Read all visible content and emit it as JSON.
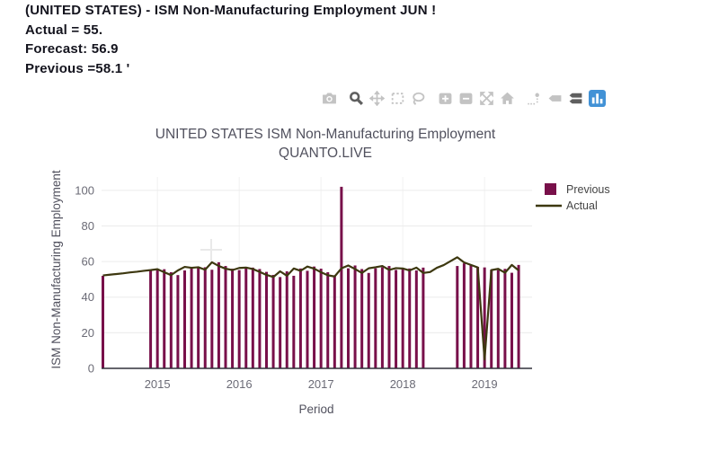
{
  "header": {
    "line1": "(UNITED STATES) - ISM Non-Manufacturing Employment JUN !",
    "line2": "Actual = 55.",
    "line3": "Forecast: 56.9",
    "line4": "Previous =58.1 '"
  },
  "modebar": {
    "icons": [
      "camera-icon",
      "zoom-icon",
      "pan-icon",
      "box-select-icon",
      "lasso-select-icon",
      "zoom-in-icon",
      "zoom-out-icon",
      "autoscale-icon",
      "reset-axes-home-icon",
      "toggle-spikelines-icon",
      "hover-closest-icon",
      "hover-compare-icon",
      "plotly-logo"
    ],
    "icon_color": "#c3c3c3",
    "active_icon_color": "#5f5f5f",
    "logo_color": "#4292d6"
  },
  "chart_data": {
    "type": "bar",
    "title": "UNITED STATES ISM Non-Manufacturing Employment",
    "subtitle": "QUANTO.LIVE",
    "xlabel": "Period",
    "ylabel": "ISM Non-Manufacturing Employment",
    "legend_position": "top-right",
    "grid": true,
    "ylim": [
      0,
      107.5
    ],
    "yticks": [
      0,
      20,
      40,
      60,
      80,
      100
    ],
    "xticks": {
      "labels": [
        "2015",
        "2016",
        "2017",
        "2018",
        "2019"
      ],
      "month_index": [
        8,
        20,
        32,
        44,
        56
      ]
    },
    "x": [
      "2014-05",
      "2014-06",
      "2014-07",
      "2014-08",
      "2014-09",
      "2014-10",
      "2014-11",
      "2014-12",
      "2015-01",
      "2015-02",
      "2015-03",
      "2015-04",
      "2015-05",
      "2015-06",
      "2015-07",
      "2015-08",
      "2015-09",
      "2015-10",
      "2015-11",
      "2015-12",
      "2016-01",
      "2016-02",
      "2016-03",
      "2016-04",
      "2016-05",
      "2016-06",
      "2016-07",
      "2016-08",
      "2016-09",
      "2016-10",
      "2016-11",
      "2016-12",
      "2017-01",
      "2017-02",
      "2017-03",
      "2017-04",
      "2017-05",
      "2017-06",
      "2017-07",
      "2017-08",
      "2017-09",
      "2017-10",
      "2017-11",
      "2017-12",
      "2018-01",
      "2018-02",
      "2018-03",
      "2018-04",
      "2018-05",
      "2018-06",
      "2018-07",
      "2018-08",
      "2018-09",
      "2018-10",
      "2018-11",
      "2018-12",
      "2019-01",
      "2019-02",
      "2019-03",
      "2019-04",
      "2019-05",
      "2019-06"
    ],
    "series": [
      {
        "name": "Previous",
        "type": "bar",
        "color": "#78104a",
        "values": [
          52.0,
          null,
          null,
          null,
          null,
          null,
          null,
          54.8,
          55.2,
          55.7,
          54.0,
          52.4,
          55.0,
          57.0,
          56.5,
          56.8,
          55.4,
          59.6,
          57.5,
          56.0,
          55.2,
          56.4,
          56.6,
          55.8,
          54.2,
          52.5,
          51.3,
          54.5,
          52.0,
          56.1,
          54.8,
          57.2,
          56.0,
          54.0,
          52.3,
          102.0,
          56.2,
          57.8,
          55.8,
          53.6,
          56.2,
          56.8,
          57.5,
          55.3,
          56.3,
          56.1,
          55.0,
          56.6,
          null,
          null,
          null,
          null,
          57.5,
          59.0,
          58.3,
          57.0,
          56.7,
          55.4,
          55.2,
          55.9,
          53.7,
          58.1
        ]
      },
      {
        "name": "Actual",
        "type": "line",
        "color": "#3d3810",
        "values": [
          52.2,
          52.6,
          53.0,
          53.4,
          53.9,
          54.3,
          54.8,
          55.2,
          55.7,
          54.0,
          52.4,
          55.0,
          57.0,
          56.5,
          56.8,
          55.4,
          59.6,
          57.5,
          56.0,
          55.2,
          56.4,
          56.6,
          55.8,
          54.2,
          52.5,
          51.3,
          54.5,
          52.0,
          56.1,
          54.8,
          57.2,
          56.0,
          54.0,
          52.3,
          51.6,
          56.2,
          57.8,
          55.8,
          53.6,
          56.2,
          56.8,
          57.5,
          55.3,
          56.3,
          56.1,
          55.0,
          56.6,
          53.6,
          54.1,
          56.5,
          58.0,
          60.2,
          62.4,
          59.5,
          58.1,
          56.7,
          5.0,
          55.2,
          55.9,
          53.7,
          58.1,
          55.0
        ]
      }
    ]
  }
}
